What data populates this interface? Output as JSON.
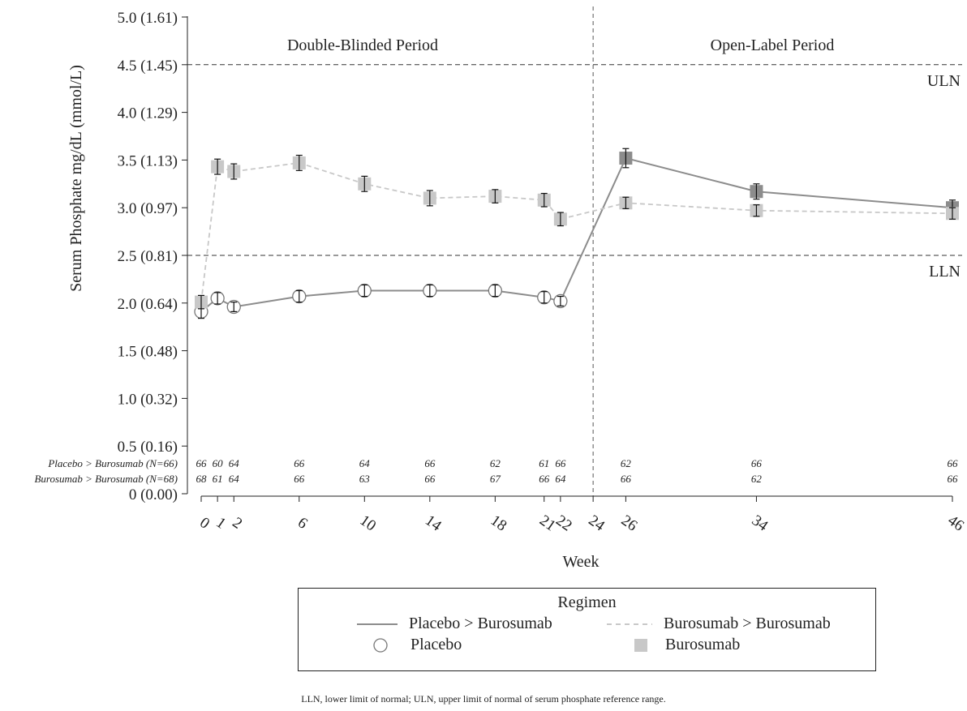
{
  "chart_data": {
    "type": "line",
    "ylabel": "Serum Phosphate mg/dL (mmol/L)",
    "xlabel": "Week",
    "ylim": [
      0,
      5.0
    ],
    "y_ticks": [
      {
        "value": 0.0,
        "label": "0 (0.00)"
      },
      {
        "value": 0.5,
        "label": "0.5 (0.16)"
      },
      {
        "value": 1.0,
        "label": "1.0 (0.32)"
      },
      {
        "value": 1.5,
        "label": "1.5 (0.48)"
      },
      {
        "value": 2.0,
        "label": "2.0 (0.64)"
      },
      {
        "value": 2.5,
        "label": "2.5 (0.81)"
      },
      {
        "value": 3.0,
        "label": "3.0 (0.97)"
      },
      {
        "value": 3.5,
        "label": "3.5 (1.13)"
      },
      {
        "value": 4.0,
        "label": "4.0 (1.29)"
      },
      {
        "value": 4.5,
        "label": "4.5 (1.45)"
      },
      {
        "value": 5.0,
        "label": "5.0 (1.61)"
      }
    ],
    "x_ticks": [
      0,
      1,
      2,
      6,
      10,
      14,
      18,
      21,
      22,
      24,
      26,
      34,
      46
    ],
    "reference_lines": [
      {
        "value": 4.5,
        "label": "ULN"
      },
      {
        "value": 2.5,
        "label": "LLN"
      }
    ],
    "period_divider_week": 24,
    "periods": [
      "Double-Blinded Period",
      "Open-Label Period"
    ],
    "series": [
      {
        "name": "Placebo > Burosumab",
        "line_style": "solid",
        "color": "#8c8c8c",
        "points": [
          {
            "week": 0,
            "mean": 1.91,
            "err": 0.07,
            "marker": "circle"
          },
          {
            "week": 1,
            "mean": 2.05,
            "err": 0.06,
            "marker": "circle"
          },
          {
            "week": 2,
            "mean": 1.96,
            "err": 0.05,
            "marker": "circle"
          },
          {
            "week": 6,
            "mean": 2.07,
            "err": 0.06,
            "marker": "circle"
          },
          {
            "week": 10,
            "mean": 2.13,
            "err": 0.06,
            "marker": "circle"
          },
          {
            "week": 14,
            "mean": 2.13,
            "err": 0.06,
            "marker": "circle"
          },
          {
            "week": 18,
            "mean": 2.13,
            "err": 0.06,
            "marker": "circle"
          },
          {
            "week": 21,
            "mean": 2.06,
            "err": 0.06,
            "marker": "circle"
          },
          {
            "week": 22,
            "mean": 2.02,
            "err": 0.05,
            "marker": "circle"
          },
          {
            "week": 26,
            "mean": 3.52,
            "err": 0.1,
            "marker": "square"
          },
          {
            "week": 34,
            "mean": 3.17,
            "err": 0.08,
            "marker": "square"
          },
          {
            "week": 46,
            "mean": 3.0,
            "err": 0.08,
            "marker": "square"
          }
        ]
      },
      {
        "name": "Burosumab > Burosumab",
        "line_style": "dashed",
        "color": "#c8c8c8",
        "points": [
          {
            "week": 0,
            "mean": 2.01,
            "err": 0.07,
            "marker": "square"
          },
          {
            "week": 1,
            "mean": 3.43,
            "err": 0.08,
            "marker": "square"
          },
          {
            "week": 2,
            "mean": 3.38,
            "err": 0.08,
            "marker": "square"
          },
          {
            "week": 6,
            "mean": 3.47,
            "err": 0.08,
            "marker": "square"
          },
          {
            "week": 10,
            "mean": 3.25,
            "err": 0.08,
            "marker": "square"
          },
          {
            "week": 14,
            "mean": 3.1,
            "err": 0.08,
            "marker": "square"
          },
          {
            "week": 18,
            "mean": 3.12,
            "err": 0.07,
            "marker": "square"
          },
          {
            "week": 21,
            "mean": 3.08,
            "err": 0.07,
            "marker": "square"
          },
          {
            "week": 22,
            "mean": 2.88,
            "err": 0.07,
            "marker": "square"
          },
          {
            "week": 26,
            "mean": 3.05,
            "err": 0.06,
            "marker": "square"
          },
          {
            "week": 34,
            "mean": 2.97,
            "err": 0.06,
            "marker": "square"
          },
          {
            "week": 46,
            "mean": 2.94,
            "err": 0.06,
            "marker": "square"
          }
        ]
      }
    ],
    "n_at_risk": [
      {
        "label": "Placebo > Burosumab (N=66)",
        "weeks": [
          0,
          1,
          2,
          6,
          10,
          14,
          18,
          21,
          22,
          26,
          34,
          46
        ],
        "counts": [
          "66",
          "60",
          "64",
          "66",
          "64",
          "66",
          "62",
          "61",
          "66",
          "62",
          "66",
          "66"
        ]
      },
      {
        "label": "Burosumab > Burosumab (N=68)",
        "weeks": [
          0,
          1,
          2,
          6,
          10,
          14,
          18,
          21,
          22,
          26,
          34,
          46
        ],
        "counts": [
          "68",
          "61",
          "64",
          "66",
          "63",
          "66",
          "67",
          "66",
          "64",
          "66",
          "62",
          "66"
        ]
      }
    ]
  },
  "legend": {
    "title": "Regimen",
    "items": [
      {
        "label": "Placebo > Burosumab",
        "kind": "solid-line"
      },
      {
        "label": "Burosumab > Burosumab",
        "kind": "dashed-line"
      },
      {
        "label": "Placebo",
        "kind": "circle-marker"
      },
      {
        "label": "Burosumab",
        "kind": "square-marker"
      }
    ]
  },
  "footnote": "LLN, lower limit of normal; ULN, upper limit of normal of serum phosphate reference range.",
  "colors": {
    "solid_line": "#8c8c8c",
    "dashed_line": "#c8c8c8",
    "square_light": "#c8c8c8",
    "square_dark": "#8c8c8c",
    "axis": "#222222"
  }
}
